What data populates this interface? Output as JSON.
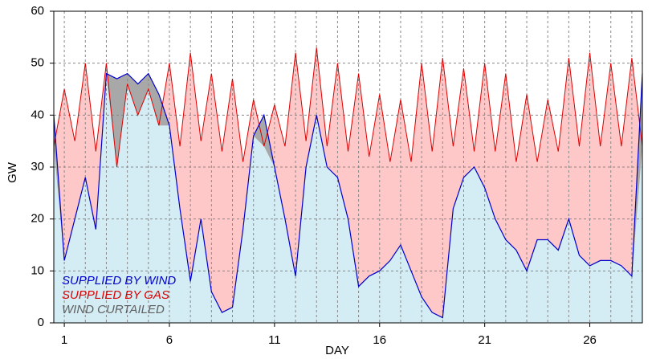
{
  "chart_data": {
    "type": "stacked-area",
    "xlabel": "DAY",
    "ylabel": "GW",
    "xlim": [
      0.5,
      28.5
    ],
    "xticks": [
      1,
      6,
      11,
      16,
      21,
      26
    ],
    "xminorticks": [
      1,
      2,
      3,
      4,
      5,
      6,
      7,
      8,
      9,
      10,
      11,
      12,
      13,
      14,
      15,
      16,
      17,
      18,
      19,
      20,
      21,
      22,
      23,
      24,
      25,
      26,
      27,
      28
    ],
    "ylim": [
      0,
      60
    ],
    "yticks": [
      0,
      10,
      20,
      30,
      40,
      50,
      60
    ],
    "grid": true,
    "legend": "lower left",
    "x": [
      0.5,
      1,
      1.5,
      2,
      2.5,
      3,
      3.5,
      4,
      4.5,
      5,
      5.5,
      6,
      6.5,
      7,
      7.5,
      8,
      8.5,
      9,
      9.5,
      10,
      10.5,
      11,
      11.5,
      12,
      12.5,
      13,
      13.5,
      14,
      14.5,
      15,
      15.5,
      16,
      16.5,
      17,
      17.5,
      18,
      18.5,
      19,
      19.5,
      20,
      20.5,
      21,
      21.5,
      22,
      22.5,
      23,
      23.5,
      24,
      24.5,
      25,
      25.5,
      26,
      26.5,
      27,
      27.5,
      28,
      28.5
    ],
    "series": [
      {
        "name": "SUPPLIED BY WIND",
        "color": "#0000cc",
        "fill": "#d4edf5",
        "values": [
          34,
          12,
          20,
          28,
          18,
          48,
          30,
          46,
          40,
          45,
          38,
          38,
          22,
          8,
          20,
          6,
          2,
          3,
          18,
          36,
          34,
          30,
          20,
          9,
          30,
          40,
          30,
          28,
          20,
          7,
          9,
          10,
          12,
          15,
          10,
          5,
          2,
          1,
          22,
          28,
          30,
          26,
          20,
          16,
          14,
          10,
          16,
          16,
          14,
          20,
          13,
          11,
          12,
          12,
          11,
          9,
          34
        ]
      },
      {
        "name": "SUPPLIED BY GAS",
        "color": "#dd0000",
        "fill": "#ffc8c8",
        "values": [
          0,
          33,
          15,
          22,
          15,
          2,
          0,
          0,
          0,
          0,
          0,
          12,
          12,
          44,
          15,
          42,
          31,
          44,
          13,
          7,
          0,
          12,
          14,
          43,
          5,
          13,
          4,
          22,
          13,
          41,
          23,
          34,
          19,
          28,
          21,
          45,
          31,
          50,
          12,
          21,
          3,
          24,
          13,
          32,
          17,
          34,
          15,
          27,
          19,
          31,
          21,
          41,
          22,
          38,
          23,
          42,
          0
        ]
      },
      {
        "name": "WIND CURTAILED",
        "color": "#606060",
        "fill": "#a8a8a8",
        "values": [
          6,
          0,
          0,
          0,
          0,
          0,
          17,
          2,
          6,
          3,
          6,
          0,
          0,
          0,
          0,
          0,
          0,
          0,
          0,
          0,
          6,
          0,
          0,
          0,
          0,
          0,
          0,
          0,
          0,
          0,
          0,
          0,
          0,
          0,
          0,
          0,
          0,
          0,
          0,
          0,
          0,
          0,
          0,
          0,
          0,
          0,
          0,
          0,
          0,
          0,
          0,
          0,
          0,
          0,
          0,
          0,
          14
        ]
      }
    ]
  }
}
